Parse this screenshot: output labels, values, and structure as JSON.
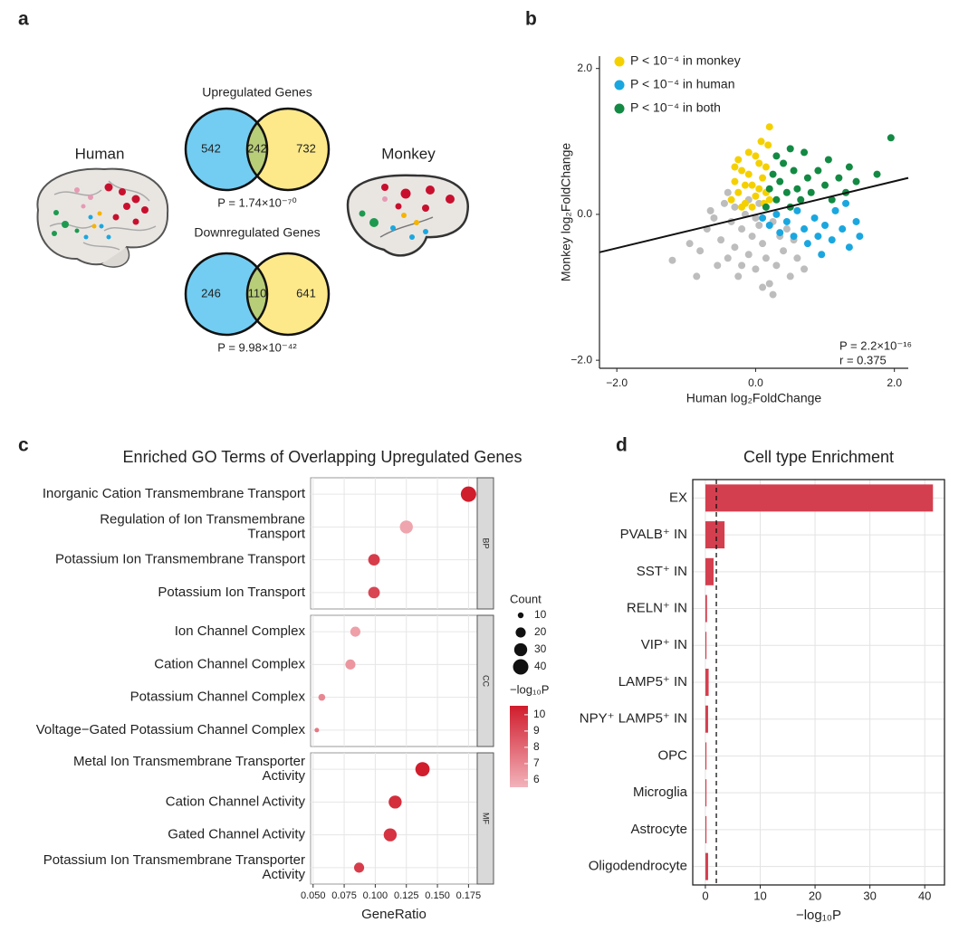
{
  "chart_data": [
    {
      "type": "venn",
      "panel": "a",
      "species": [
        "Human",
        "Monkey"
      ],
      "colors": [
        "#73cdf2",
        "#fde98a",
        "#b8cd78"
      ],
      "diagrams": [
        {
          "title": "Upregulated Genes",
          "values": [
            542,
            242,
            732
          ],
          "p_label": "P = 1.74×10⁻⁷⁰"
        },
        {
          "title": "Downregulated Genes",
          "values": [
            246,
            110,
            641
          ],
          "p_label": "P = 9.98×10⁻⁴²"
        }
      ]
    },
    {
      "type": "scatter",
      "panel": "b",
      "xlabel": "Human log₂FoldChange",
      "ylabel": "Monkey log₂FoldChange",
      "xlim": [
        -2.25,
        2.2
      ],
      "ylim": [
        -2.11,
        2.17
      ],
      "xticks": [
        {
          "value": -2,
          "label": "−2.0"
        },
        {
          "value": 0,
          "label": "0.0"
        },
        {
          "value": 2,
          "label": "2.0"
        }
      ],
      "yticks": [
        {
          "value": -2,
          "label": "−2.0"
        },
        {
          "value": 0,
          "label": "0.0"
        },
        {
          "value": 2,
          "label": "2.0"
        }
      ],
      "legend": "top-left",
      "series": [
        {
          "color": "#bdbdbd",
          "x": [
            -1.2,
            -0.95,
            -0.8,
            -0.7,
            -0.6,
            -0.5,
            -0.45,
            -0.4,
            -0.35,
            -0.3,
            -0.25,
            -0.2,
            -0.15,
            -0.1,
            -0.05,
            0,
            0.05,
            0.1,
            0.15,
            0.2,
            0.25,
            0.3,
            0.35,
            0.4,
            0.45,
            0.5,
            0.6,
            0.7,
            -0.55,
            -0.65,
            -0.3,
            -0.1,
            0,
            0.25,
            -0.85,
            0.1,
            -0.2,
            0.55,
            -0.4,
            0.05
          ],
          "y": [
            -0.63,
            -0.4,
            -0.5,
            -0.2,
            -0.05,
            -0.35,
            0.15,
            -0.6,
            -0.1,
            -0.45,
            -0.85,
            -0.2,
            0,
            -0.55,
            -0.3,
            -0.75,
            -0.15,
            -0.4,
            -0.6,
            -0.95,
            -1.1,
            -0.7,
            -0.3,
            -0.5,
            -0.2,
            -0.85,
            -0.6,
            -0.75,
            -0.7,
            0.05,
            0.1,
            0.2,
            -0.05,
            -0.1,
            -0.85,
            -1.0,
            -0.7,
            -0.35,
            0.3,
            0.15
          ]
        },
        {
          "name": "P < 10⁻⁴ in monkey",
          "color": "#f5d000",
          "x": [
            -0.35,
            -0.3,
            -0.25,
            -0.2,
            -0.15,
            -0.1,
            -0.05,
            0,
            0.05,
            0.1,
            0.15,
            0.2,
            0.18,
            -0.1,
            0,
            -0.25,
            0.12,
            -0.05,
            0.08,
            -0.3,
            0.2,
            -0.15,
            0.05,
            -0.2,
            0.15
          ],
          "y": [
            0.2,
            0.45,
            0.3,
            0.6,
            0.15,
            0.85,
            0.4,
            0.25,
            0.7,
            0.5,
            0.3,
            1.2,
            0.95,
            0.55,
            0.8,
            0.75,
            0.15,
            0.1,
            1.0,
            0.65,
            0.2,
            0.4,
            0.35,
            0.1,
            0.65
          ]
        },
        {
          "name": "P < 10⁻⁴ in human",
          "color": "#1aa7e0",
          "x": [
            0.1,
            0.2,
            0.3,
            0.35,
            0.45,
            0.55,
            0.6,
            0.7,
            0.75,
            0.85,
            0.9,
            1.0,
            1.1,
            1.15,
            1.25,
            1.35,
            1.45,
            1.5,
            0.95,
            1.3
          ],
          "y": [
            -0.05,
            -0.15,
            0,
            -0.25,
            -0.1,
            -0.3,
            0.05,
            -0.2,
            -0.4,
            -0.05,
            -0.3,
            -0.15,
            -0.35,
            0.05,
            -0.2,
            -0.45,
            -0.1,
            -0.3,
            -0.55,
            0.15
          ]
        },
        {
          "name": "P < 10⁻⁴ in both",
          "color": "#138a43",
          "x": [
            0.15,
            0.2,
            0.25,
            0.3,
            0.35,
            0.4,
            0.45,
            0.5,
            0.55,
            0.6,
            0.65,
            0.7,
            0.75,
            0.8,
            0.9,
            1.0,
            1.05,
            1.1,
            1.2,
            1.3,
            1.35,
            1.45,
            1.75,
            1.95,
            0.3,
            0.5
          ],
          "y": [
            0.1,
            0.35,
            0.55,
            0.2,
            0.45,
            0.7,
            0.3,
            0.1,
            0.6,
            0.35,
            0.2,
            0.85,
            0.5,
            0.3,
            0.6,
            0.4,
            0.75,
            0.2,
            0.5,
            0.3,
            0.65,
            0.45,
            0.55,
            1.05,
            0.8,
            0.9
          ]
        }
      ],
      "trend_line": {
        "x": [
          -2.25,
          2.2
        ],
        "y": [
          -0.52,
          0.5
        ]
      },
      "annotations": [
        "P = 2.2×10⁻¹⁶",
        "r = 0.375"
      ]
    },
    {
      "type": "dot",
      "panel": "c",
      "title": "Enriched GO Terms of Overlapping Upregulated Genes",
      "xlabel": "GeneRatio",
      "xlim": [
        0.048,
        0.182
      ],
      "xticks": [
        {
          "value": 0.05,
          "label": "0.050"
        },
        {
          "value": 0.075,
          "label": "0.075"
        },
        {
          "value": 0.1,
          "label": "0.100"
        },
        {
          "value": 0.125,
          "label": "0.125"
        },
        {
          "value": 0.15,
          "label": "0.150"
        },
        {
          "value": 0.175,
          "label": "0.175"
        }
      ],
      "size_title": "Count",
      "size_ticks": [
        10,
        20,
        30,
        40
      ],
      "color_title": "−log₁₀P",
      "color_lim": [
        5.55,
        10.55
      ],
      "color_ticks": [
        6,
        7,
        8,
        9,
        10
      ],
      "colors": [
        "#f2b3bb",
        "#d01c2c"
      ],
      "facets": [
        {
          "label": "BP",
          "categories": [
            [
              "Inorganic Cation Transmembrane Transport"
            ],
            [
              "Regulation of Ion Transmembrane",
              "Transport"
            ],
            [
              "Potassium Ion Transmembrane Transport"
            ],
            [
              "Potassium Ion Transport"
            ]
          ],
          "x": [
            0.175,
            0.125,
            0.099,
            0.099
          ],
          "count": [
            40,
            30,
            25,
            25
          ],
          "logp": [
            10.5,
            6,
            9.5,
            9.2
          ]
        },
        {
          "label": "CC",
          "categories": [
            [
              "Ion Channel Complex"
            ],
            [
              "Cation Channel Complex"
            ],
            [
              "Potassium Channel Complex"
            ],
            [
              "Voltage−Gated Potassium Channel Complex"
            ]
          ],
          "x": [
            0.084,
            0.08,
            0.057,
            0.053
          ],
          "count": [
            20,
            20,
            12,
            8
          ],
          "logp": [
            6.2,
            6.5,
            7,
            7.5
          ]
        },
        {
          "label": "MF",
          "categories": [
            [
              "Metal Ion Transmembrane Transporter",
              "Activity"
            ],
            [
              "Cation Channel Activity"
            ],
            [
              "Gated Channel Activity"
            ],
            [
              "Potassium Ion Transmembrane Transporter",
              "Activity"
            ]
          ],
          "x": [
            0.138,
            0.116,
            0.112,
            0.087
          ],
          "count": [
            35,
            30,
            30,
            20
          ],
          "logp": [
            10.5,
            10,
            9.8,
            9.5
          ]
        }
      ]
    },
    {
      "type": "hbar",
      "panel": "d",
      "title": "Cell type Enrichment",
      "xlabel": "−log₁₀P",
      "categories": [
        "EX",
        "PVALB⁺ IN",
        "SST⁺ IN",
        "RELN⁺ IN",
        "VIP⁺ IN",
        "LAMP5⁺ IN",
        "NPY⁺ LAMP5⁺ IN",
        "OPC",
        "Microglia",
        "Astrocyte",
        "Oligodendrocyte"
      ],
      "values": [
        41.5,
        3.5,
        1.5,
        0.3,
        0.2,
        0.6,
        0.5,
        0.2,
        0.2,
        0.2,
        0.5
      ],
      "color": "#d43f4f",
      "xlim": [
        -2.3,
        43.6
      ],
      "xticks": [
        0,
        10,
        20,
        30,
        40
      ],
      "threshold": 2,
      "grid": true
    }
  ]
}
